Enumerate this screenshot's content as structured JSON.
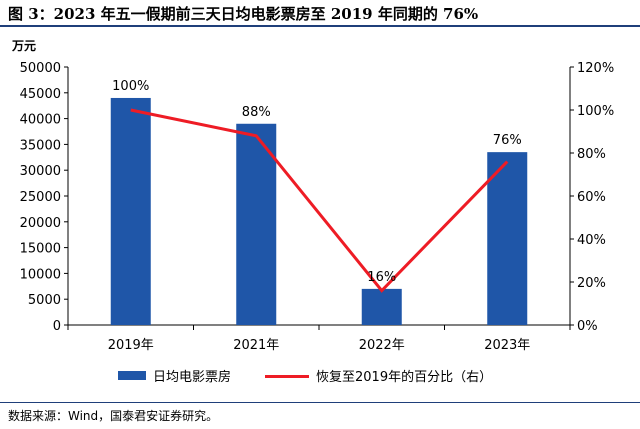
{
  "title": "图 3：2023 年五一假期前三天日均电影票房至 2019 年同期的 76%",
  "source": "数据来源：Wind，国泰君安证券研究。",
  "colors": {
    "bar": "#1f56a8",
    "line": "#ee1c25",
    "rule": "#1f3f7a"
  },
  "chart_data": {
    "type": "bar",
    "categories": [
      "2019年",
      "2021年",
      "2022年",
      "2023年"
    ],
    "series": [
      {
        "name": "日均电影票房",
        "type": "bar",
        "axis": "left",
        "values": [
          44000,
          39000,
          7000,
          33500
        ]
      },
      {
        "name": "恢复至2019年的百分比（右）",
        "type": "line",
        "axis": "right",
        "values": [
          100,
          88,
          16,
          76
        ]
      }
    ],
    "data_labels": [
      "100%",
      "88%",
      "16%",
      "76%"
    ],
    "ylabel": "万元",
    "ylim": [
      0,
      50000
    ],
    "yticks": [
      "0",
      "5000",
      "10000",
      "15000",
      "20000",
      "25000",
      "30000",
      "35000",
      "40000",
      "45000",
      "50000"
    ],
    "y2lim": [
      0,
      120
    ],
    "y2ticks": [
      "0%",
      "20%",
      "40%",
      "60%",
      "80%",
      "100%",
      "120%"
    ],
    "legend": "bottom",
    "grid": false
  }
}
